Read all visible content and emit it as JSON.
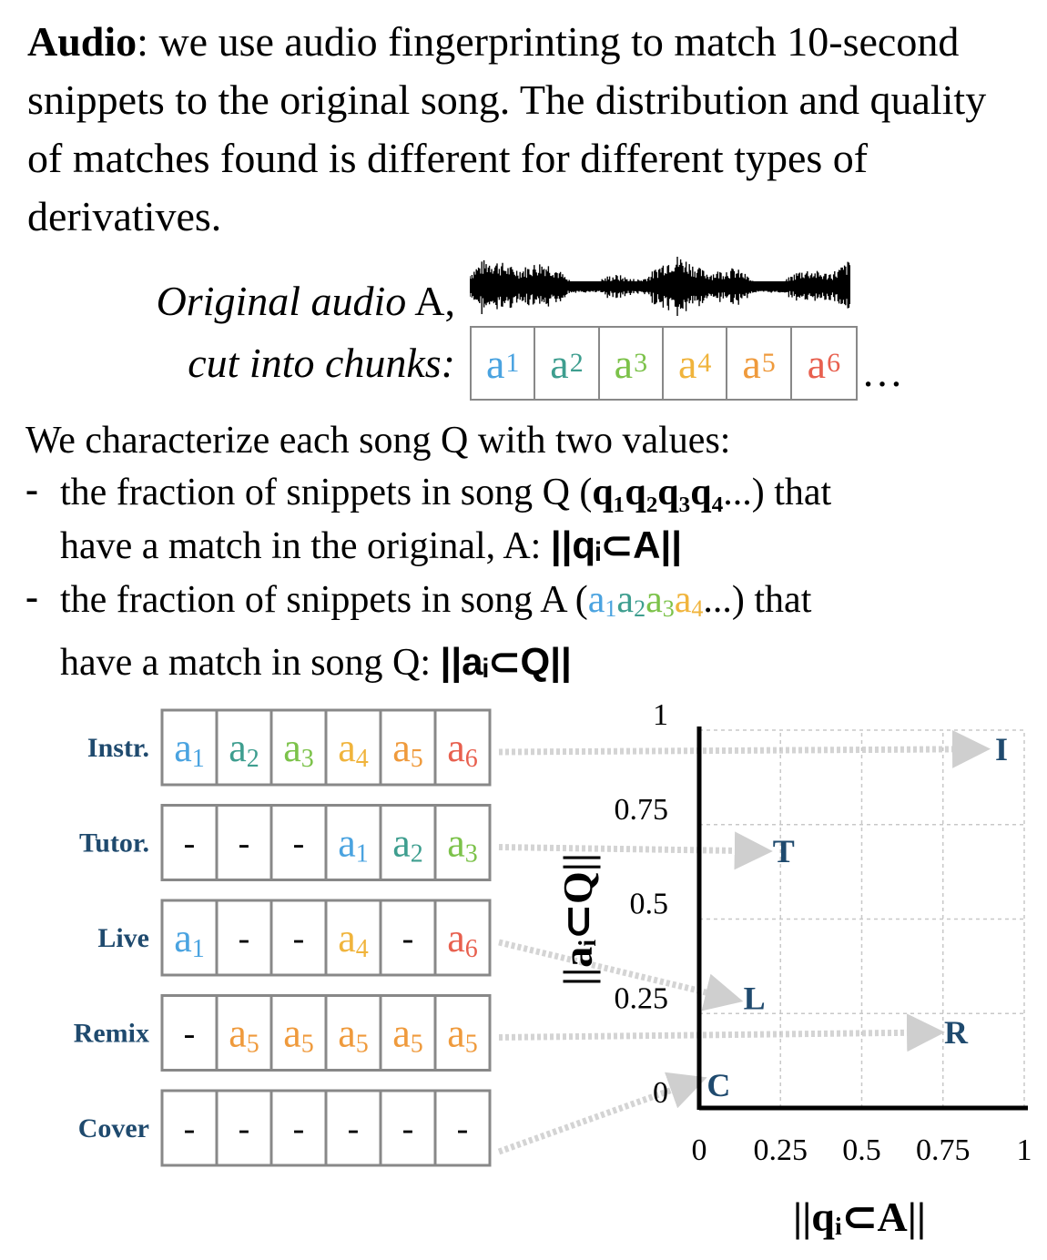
{
  "intro": {
    "bold": "Audio",
    "text": ": we use audio fingerprinting to match 10-second snippets to the original song. The distribution and quality of matches found is different for different types of derivatives."
  },
  "original": {
    "line1_italic": "Original audio",
    "line1_upright": " A,",
    "line2_italic": "cut into chunks:",
    "chunks": [
      {
        "base": "a",
        "sub": "1",
        "color": "#4aa3e0"
      },
      {
        "base": "a",
        "sub": "2",
        "color": "#3e9e8f"
      },
      {
        "base": "a",
        "sub": "3",
        "color": "#7cc24a"
      },
      {
        "base": "a",
        "sub": "4",
        "color": "#f0b43c"
      },
      {
        "base": "a",
        "sub": "5",
        "color": "#ef9a3c"
      },
      {
        "base": "a",
        "sub": "6",
        "color": "#e8604f"
      }
    ],
    "ellipsis": "…"
  },
  "characterize": {
    "heading": "We characterize each song Q with two values:",
    "bullet1_a": "the fraction of snippets in song Q (",
    "bullet1_bold": "q₁q₂q₃q₄",
    "bullet1_b": "...) that",
    "bullet1_line2": "have a match in the original, A: ",
    "bullet1_formula": "||qᵢ⊂A||",
    "bullet2_a": "the fraction of snippets in song A (",
    "bullet2_b": "...) that",
    "bullet2_line2": "have a match in song Q: ",
    "bullet2_formula": "||aᵢ⊂Q||",
    "dash": "-"
  },
  "rows": [
    {
      "label": "Instr.",
      "cells": [
        "a1",
        "a2",
        "a3",
        "a4",
        "a5",
        "a6"
      ],
      "marker": "I"
    },
    {
      "label": "Tutor.",
      "cells": [
        "-",
        "-",
        "-",
        "a1",
        "a2",
        "a3"
      ],
      "marker": "T"
    },
    {
      "label": "Live",
      "cells": [
        "a1",
        "-",
        "-",
        "a4",
        "-",
        "a6"
      ],
      "marker": "L"
    },
    {
      "label": "Remix",
      "cells": [
        "-",
        "a5",
        "a5",
        "a5",
        "a5",
        "a5"
      ],
      "marker": "R"
    },
    {
      "label": "Cover",
      "cells": [
        "-",
        "-",
        "-",
        "-",
        "-",
        "-"
      ],
      "marker": "C"
    }
  ],
  "chart_data": {
    "type": "scatter",
    "xlabel": "||qᵢ⊂A||",
    "ylabel": "||aᵢ⊂Q||",
    "xlim": [
      0,
      1
    ],
    "ylim": [
      0,
      1
    ],
    "x_ticks": [
      "0",
      "0.25",
      "0.5",
      "0.75",
      "1"
    ],
    "y_ticks": [
      "0",
      "0.25",
      "0.5",
      "0.75",
      "1"
    ],
    "grid": true,
    "points": [
      {
        "label": "I",
        "x": 0.93,
        "y": 0.95
      },
      {
        "label": "T",
        "x": 0.26,
        "y": 0.68
      },
      {
        "label": "L",
        "x": 0.17,
        "y": 0.29
      },
      {
        "label": "R",
        "x": 0.79,
        "y": 0.2
      },
      {
        "label": "C",
        "x": 0.06,
        "y": 0.06
      }
    ],
    "marker_color": "#1f4a6e"
  }
}
